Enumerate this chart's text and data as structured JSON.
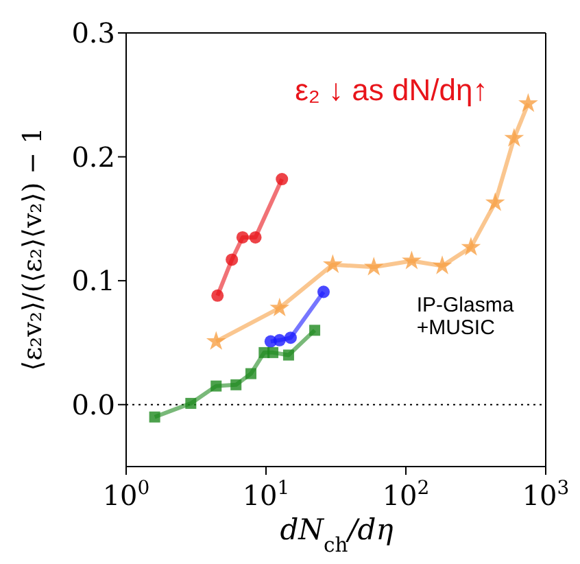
{
  "chart_data": {
    "type": "line",
    "xlabel": "dN$_{ch}$/dη",
    "ylabel": "⟨ε₂v₂⟩/(⟨ε₂⟩⟨v₂⟩) − 1",
    "log": "x",
    "xlim": [
      1,
      1000
    ],
    "xticks": [
      {
        "value": 1,
        "label": "10$^{0}$"
      },
      {
        "value": 10,
        "label": "10$^{1}$"
      },
      {
        "value": 100,
        "label": "10$^{2}$"
      },
      {
        "value": 1000,
        "label": "10$^{3}$"
      }
    ],
    "ylim": [
      -0.05,
      0.3
    ],
    "yticks": [
      {
        "value": 0,
        "label": "0.0"
      },
      0.1,
      0.2,
      0.3
    ],
    "ref_lines": [
      {
        "axis": "y",
        "value": 0,
        "color": "#000000",
        "line_style": "dotted"
      }
    ],
    "annotations": [
      "ε₂ ↓ as dN/dη↑",
      "IP-Glasma\n+MUSIC"
    ],
    "series": [
      {
        "color": "#e8141a",
        "marker": "circle",
        "line_style": "solid",
        "x": [
          4.5,
          5.7,
          6.8,
          8.4,
          13
        ],
        "values": [
          0.088,
          0.117,
          0.135,
          0.135,
          0.182
        ]
      },
      {
        "color": "#f7a045",
        "marker": "star",
        "line_style": "solid",
        "x": [
          4.4,
          12.5,
          30,
          59,
          110,
          182,
          292,
          435,
          594,
          749
        ],
        "values": [
          0.051,
          0.078,
          0.113,
          0.111,
          0.116,
          0.112,
          0.127,
          0.163,
          0.215,
          0.243
        ]
      },
      {
        "color": "#1a1aff",
        "marker": "circle",
        "line_style": "solid",
        "x": [
          10.8,
          12.5,
          15,
          25.8
        ],
        "values": [
          0.051,
          0.052,
          0.054,
          0.091
        ]
      },
      {
        "color": "#1f8a1f",
        "marker": "square",
        "line_style": "solid",
        "x": [
          1.6,
          2.9,
          4.4,
          6.1,
          7.8,
          9.7,
          11.2,
          14.5,
          22.3
        ],
        "values": [
          -0.01,
          0.001,
          0.015,
          0.016,
          0.025,
          0.042,
          0.042,
          0.04,
          0.06
        ]
      }
    ]
  }
}
